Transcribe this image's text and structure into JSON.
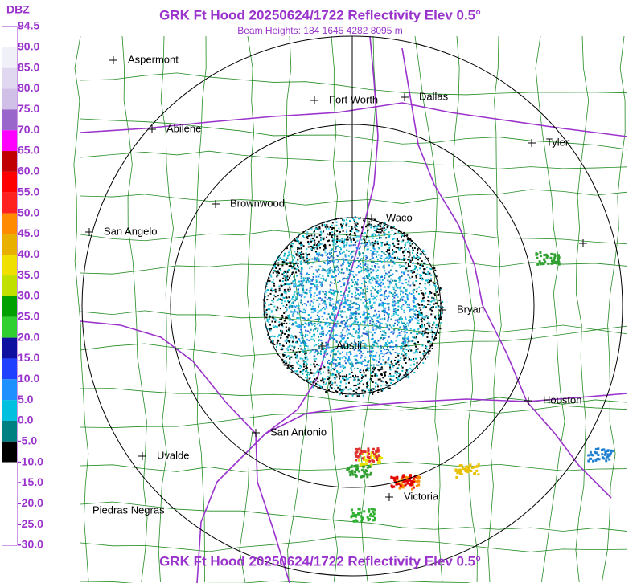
{
  "header": {
    "title": "GRK Ft Hood 20250624/1722 Reflectivity Elev 0.5°",
    "subtitle": "Beam Heights: 184 1645 4282 8095 m"
  },
  "legend": {
    "unit": "DBZ",
    "labels": [
      "94.5",
      "90.0",
      "85.0",
      "80.0",
      "75.0",
      "70.0",
      "65.0",
      "60.0",
      "55.0",
      "50.0",
      "45.0",
      "40.0",
      "35.0",
      "30.0",
      "25.0",
      "20.0",
      "15.0",
      "10.0",
      "5.0",
      "0.0",
      "-5.0",
      "-10.0",
      "-15.0",
      "-20.0",
      "-25.0",
      "-30.0"
    ]
  },
  "cities": [
    "Aspermont",
    "Abilene",
    "Fort Worth",
    "Dallas",
    "Tyler",
    "Brownwood",
    "San Angelo",
    "Waco",
    "Bryan",
    "Austin",
    "Houston",
    "San Antonio",
    "Uvalde",
    "Victoria",
    "Piedras Negras"
  ],
  "footer": {
    "title": "GRK Ft Hood 20250624/1722 Reflectivity Elev 0.5°"
  }
}
